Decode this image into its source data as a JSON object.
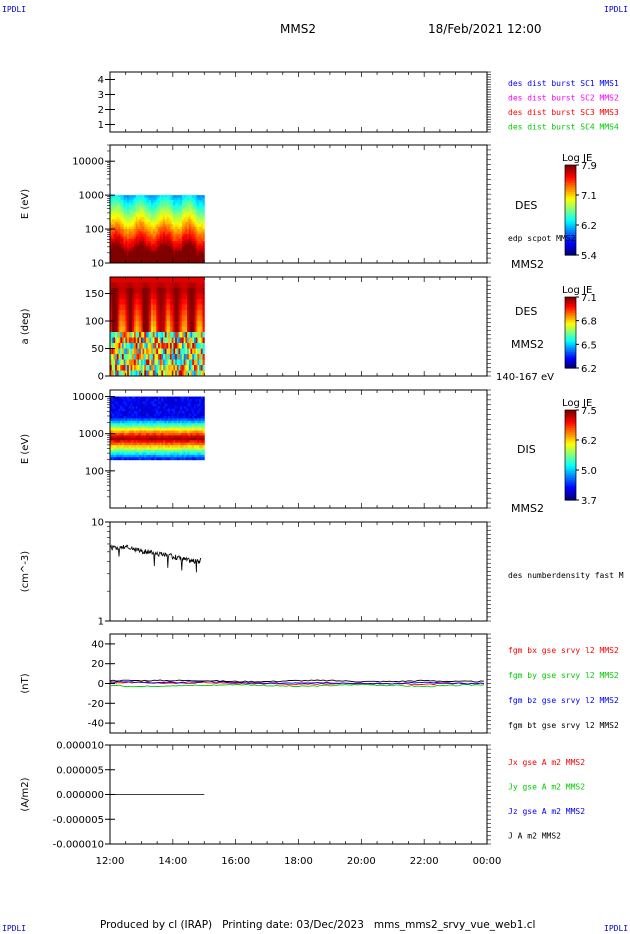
{
  "header": {
    "corner_label": "IPDLI",
    "title": "MMS2",
    "datetime": "18/Feb/2021 12:00"
  },
  "footer": {
    "text": "Produced by cl (IRAP)   Printing date: 03/Dec/2023   mms_mms2_srvy_vue_web1.cl"
  },
  "colors": {
    "blue": "#0000ff",
    "magenta": "#ff00ff",
    "red": "#ff0000",
    "green": "#00cc00",
    "black": "#000000"
  },
  "chart_data": [
    {
      "type": "line",
      "panel": "spacecraft-config",
      "ylim": [
        0.5,
        4.5
      ],
      "yticks": [
        "1",
        "2",
        "3",
        "4"
      ],
      "legend": [
        {
          "text": "des dist burst SC1 MMS1",
          "color": "#0000ff"
        },
        {
          "text": "des dist burst SC2 MMS2",
          "color": "#ff00ff"
        },
        {
          "text": "des dist burst SC3 MMS3",
          "color": "#ff0000"
        },
        {
          "text": "des dist burst SC4 MMS4",
          "color": "#00cc00"
        }
      ]
    },
    {
      "type": "heatmap",
      "panel": "des-energy",
      "ylabel": "E (eV)",
      "scale": "log",
      "ylim": [
        10,
        30000
      ],
      "yticks": [
        "10",
        "100",
        "1000",
        "10000"
      ],
      "data_span_hours": [
        0,
        3
      ],
      "instrument": "DES",
      "spacecraft": "MMS2",
      "note": "edp scpot MMS2",
      "colorbar": {
        "title": "Log JE",
        "labels": [
          "7.9",
          "7.1",
          "6.2",
          "5.4"
        ]
      }
    },
    {
      "type": "heatmap",
      "panel": "des-pitch-angle",
      "ylabel": "a (deg)",
      "ylim": [
        0,
        180
      ],
      "yticks": [
        "0",
        "50",
        "100",
        "150"
      ],
      "data_span_hours": [
        0,
        3
      ],
      "instrument": "DES",
      "spacecraft": "MMS2",
      "energy_range": "140-167 eV",
      "colorbar": {
        "title": "Log JE",
        "labels": [
          "7.1",
          "6.8",
          "6.5",
          "6.2"
        ]
      }
    },
    {
      "type": "heatmap",
      "panel": "dis-energy",
      "ylabel": "E (eV)",
      "scale": "log",
      "ylim": [
        10,
        15000
      ],
      "yticks": [
        "100",
        "1000",
        "10000"
      ],
      "data_span_hours": [
        0,
        3
      ],
      "instrument": "DIS",
      "spacecraft": "MMS2",
      "colorbar": {
        "title": "Log JE",
        "labels": [
          "7.5",
          "6.2",
          "5.0",
          "3.7"
        ]
      }
    },
    {
      "type": "line",
      "panel": "density",
      "ylabel": "(cm^-3)",
      "scale": "log",
      "ylim": [
        1,
        10
      ],
      "yticks": [
        "1",
        "10"
      ],
      "legend": [
        {
          "text": "des numberdensity fast M",
          "color": "#000000"
        }
      ],
      "series": [
        {
          "name": "des numberdensity fast M",
          "x": [
            0.0,
            0.25,
            0.5,
            0.75,
            1.0,
            1.25,
            1.5,
            1.75,
            2.0,
            2.25,
            2.5,
            2.75,
            2.9
          ],
          "y": [
            5.5,
            5.4,
            5.6,
            5.3,
            5.1,
            5.0,
            4.8,
            4.6,
            4.5,
            4.3,
            4.1,
            4.0,
            4.1
          ]
        }
      ]
    },
    {
      "type": "line",
      "panel": "magnetic-field",
      "ylabel": "(nT)",
      "ylim": [
        -50,
        50
      ],
      "yticks": [
        "-40",
        "-20",
        "0",
        "20",
        "40"
      ],
      "legend": [
        {
          "text": "fgm bx gse srvy l2 MMS2",
          "color": "#ff0000"
        },
        {
          "text": "fgm by gse srvy l2 MMS2",
          "color": "#00cc00"
        },
        {
          "text": "fgm bz gse srvy l2 MMS2",
          "color": "#0000ff"
        },
        {
          "text": "fgm bt gse srvy l2 MMS2",
          "color": "#000000"
        }
      ],
      "series": [
        {
          "name": "fgm bx gse srvy l2 MMS2",
          "color": "#ff0000",
          "x": [
            0,
            1,
            2,
            3,
            4,
            5,
            6,
            7,
            8,
            9,
            10,
            11,
            12
          ],
          "y": [
            1,
            1,
            0,
            1,
            0,
            0,
            -1,
            0,
            0,
            0,
            -1,
            0,
            0
          ]
        },
        {
          "name": "fgm by gse srvy l2 MMS2",
          "color": "#00cc00",
          "x": [
            0,
            1,
            2,
            3,
            4,
            5,
            6,
            7,
            8,
            9,
            10,
            11,
            12
          ],
          "y": [
            -2,
            -3,
            -2,
            -2,
            -1,
            -2,
            -3,
            -2,
            -1,
            -2,
            -3,
            -2,
            -1
          ]
        },
        {
          "name": "fgm bz gse srvy l2 MMS2",
          "color": "#0000ff",
          "x": [
            0,
            1,
            2,
            3,
            4,
            5,
            6,
            7,
            8,
            9,
            10,
            11,
            12
          ],
          "y": [
            2,
            1,
            1,
            2,
            1,
            0,
            1,
            1,
            0,
            0,
            1,
            0,
            0
          ]
        },
        {
          "name": "fgm bt gse srvy l2 MMS2",
          "color": "#000000",
          "x": [
            0,
            1,
            2,
            3,
            4,
            5,
            6,
            7,
            8,
            9,
            10,
            11,
            12
          ],
          "y": [
            3,
            3,
            3,
            3,
            2,
            2,
            3,
            3,
            2,
            2,
            3,
            2,
            2
          ]
        }
      ]
    },
    {
      "type": "line",
      "panel": "current-density",
      "ylabel": "(A/m2)",
      "ylim": [
        -1e-05,
        1e-05
      ],
      "yticks": [
        "-0.000010",
        "-0.000005",
        "0.000000",
        "0.000005",
        "0.000010"
      ],
      "legend": [
        {
          "text": "Jx gse A m2 MMS2",
          "color": "#ff0000"
        },
        {
          "text": "Jy gse A m2 MMS2",
          "color": "#00cc00"
        },
        {
          "text": "Jz gse A m2 MMS2",
          "color": "#0000ff"
        },
        {
          "text": "J A m2 MMS2",
          "color": "#000000"
        }
      ],
      "series": [
        {
          "name": "J A m2 MMS2",
          "x": [
            0,
            0.75,
            1.5,
            2.25,
            3.0
          ],
          "y": [
            0,
            0,
            0,
            0,
            0
          ]
        }
      ]
    }
  ],
  "xaxis": {
    "ticks": [
      "12:00",
      "14:00",
      "16:00",
      "18:00",
      "20:00",
      "22:00",
      "00:00"
    ],
    "range_hours": [
      0,
      12
    ]
  }
}
